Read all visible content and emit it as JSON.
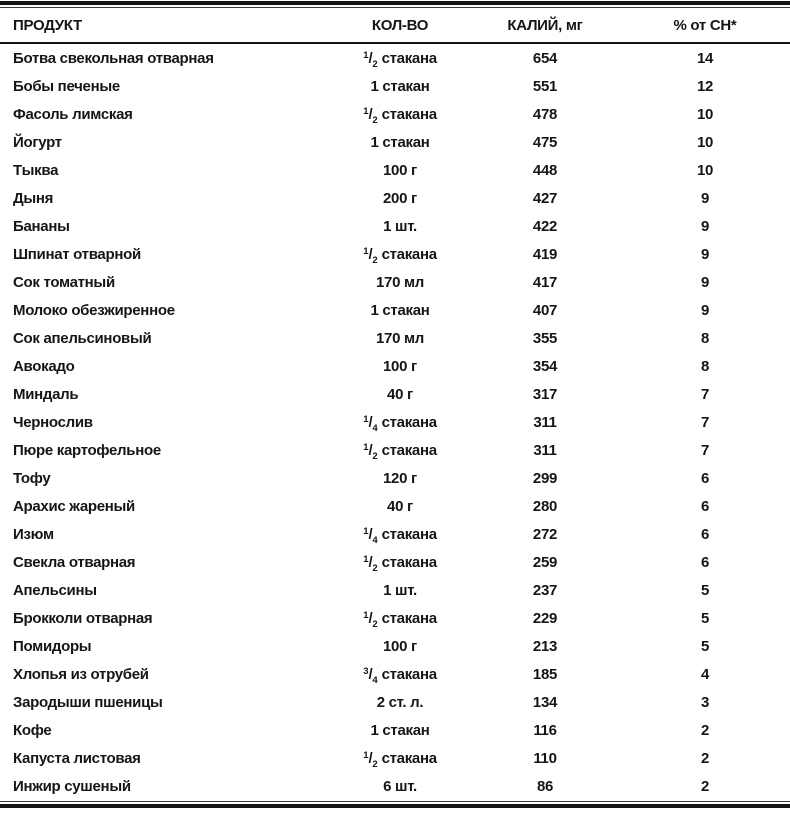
{
  "colors": {
    "text": "#161616",
    "rule": "#161616",
    "background": "#ffffff"
  },
  "table": {
    "columns": [
      {
        "label": "ПРОДУКТ",
        "align": "left"
      },
      {
        "label": "КОЛ-ВО",
        "align": "center"
      },
      {
        "label": "КАЛИЙ, мг",
        "align": "center"
      },
      {
        "label": "% от СН*",
        "align": "center"
      }
    ],
    "rows": [
      {
        "product": "Ботва свекольная отварная",
        "quantity": "1/2 стакана",
        "potassium_mg": "654",
        "percent_dn": "14"
      },
      {
        "product": "Бобы печеные",
        "quantity": "1 стакан",
        "potassium_mg": "551",
        "percent_dn": "12"
      },
      {
        "product": "Фасоль лимская",
        "quantity": "1/2 стакана",
        "potassium_mg": "478",
        "percent_dn": "10"
      },
      {
        "product": "Йогурт",
        "quantity": "1 стакан",
        "potassium_mg": "475",
        "percent_dn": "10"
      },
      {
        "product": "Тыква",
        "quantity": "100 г",
        "potassium_mg": "448",
        "percent_dn": "10"
      },
      {
        "product": "Дыня",
        "quantity": "200 г",
        "potassium_mg": "427",
        "percent_dn": "9"
      },
      {
        "product": "Бананы",
        "quantity": "1 шт.",
        "potassium_mg": "422",
        "percent_dn": "9"
      },
      {
        "product": "Шпинат отварной",
        "quantity": "1/2 стакана",
        "potassium_mg": "419",
        "percent_dn": "9"
      },
      {
        "product": "Сок томатный",
        "quantity": "170 мл",
        "potassium_mg": "417",
        "percent_dn": "9"
      },
      {
        "product": "Молоко обезжиренное",
        "quantity": "1 стакан",
        "potassium_mg": "407",
        "percent_dn": "9"
      },
      {
        "product": "Сок апельсиновый",
        "quantity": "170 мл",
        "potassium_mg": "355",
        "percent_dn": "8"
      },
      {
        "product": "Авокадо",
        "quantity": "100 г",
        "potassium_mg": "354",
        "percent_dn": "8"
      },
      {
        "product": "Миндаль",
        "quantity": "40 г",
        "potassium_mg": "317",
        "percent_dn": "7"
      },
      {
        "product": "Чернослив",
        "quantity": "1/4 стакана",
        "potassium_mg": "311",
        "percent_dn": "7"
      },
      {
        "product": "Пюре картофельное",
        "quantity": "1/2 стакана",
        "potassium_mg": "311",
        "percent_dn": "7"
      },
      {
        "product": "Тофу",
        "quantity": "120 г",
        "potassium_mg": "299",
        "percent_dn": "6"
      },
      {
        "product": "Арахис жареный",
        "quantity": "40 г",
        "potassium_mg": "280",
        "percent_dn": "6"
      },
      {
        "product": "Изюм",
        "quantity": "1/4 стакана",
        "potassium_mg": "272",
        "percent_dn": "6"
      },
      {
        "product": "Свекла отварная",
        "quantity": "1/2 стакана",
        "potassium_mg": "259",
        "percent_dn": "6"
      },
      {
        "product": "Апельсины",
        "quantity": "1 шт.",
        "potassium_mg": "237",
        "percent_dn": "5"
      },
      {
        "product": "Брокколи отварная",
        "quantity": "1/2 стакана",
        "potassium_mg": "229",
        "percent_dn": "5"
      },
      {
        "product": "Помидоры",
        "quantity": "100 г",
        "potassium_mg": "213",
        "percent_dn": "5"
      },
      {
        "product": "Хлопья из отрубей",
        "quantity": "3/4 стакана",
        "potassium_mg": "185",
        "percent_dn": "4"
      },
      {
        "product": "Зародыши пшеницы",
        "quantity": "2 ст. л.",
        "potassium_mg": "134",
        "percent_dn": "3"
      },
      {
        "product": "Кофе",
        "quantity": "1 стакан",
        "potassium_mg": "116",
        "percent_dn": "2"
      },
      {
        "product": "Капуста листовая",
        "quantity": "1/2 стакана",
        "potassium_mg": "110",
        "percent_dn": "2"
      },
      {
        "product": "Инжир сушеный",
        "quantity": "6 шт.",
        "potassium_mg": "86",
        "percent_dn": "2"
      }
    ]
  }
}
